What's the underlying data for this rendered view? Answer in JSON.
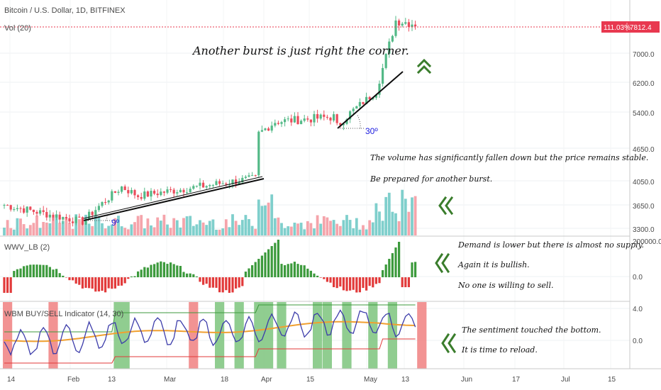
{
  "header": {
    "symbol": "Bitcoin / U.S. Dollar, 1D, BITFINEX",
    "volume_label": "Vol (20)",
    "wwv_label": "WWV_LB (2)",
    "wbm_label": "WBM BUY/SELL Indicator (14, 30)"
  },
  "price_badge": {
    "pct": "111.03%",
    "price": "7812.4",
    "color": "#e8384f"
  },
  "annotations": {
    "headline": "Another burst is just right the corner.",
    "note_volume_1": "The volume has significantly fallen down but the price remains stable.",
    "note_volume_2": "Be prepared for another burst.",
    "note_wwv_1": "Demand is lower but there is almost no supply.",
    "note_wwv_2": "Again it is bullish.",
    "note_wwv_3": "No one is willing to sell.",
    "note_wbm_1": "The sentiment touched the bottom.",
    "note_wbm_2": "It is time to reload.",
    "angle_small": "9º",
    "angle_large": "30º"
  },
  "colors": {
    "up": "#53b987",
    "down": "#eb4d5c",
    "vol_up": "#7fcfcc",
    "vol_down": "#f5a4ab",
    "green_arrow": "#3a7d2c",
    "blue": "#1a1adf",
    "orange": "#f0a030",
    "indigo": "#3c3caa"
  },
  "chart_data": {
    "type": "candlestick",
    "title": "Bitcoin / U.S. Dollar, 1D, BITFINEX",
    "x_ticks": [
      "14",
      "Feb",
      "13",
      "Mar",
      "18",
      "Apr",
      "15",
      "May",
      "13",
      "Jun",
      "17",
      "Jul",
      "15"
    ],
    "price_axis": {
      "ticks": [
        3300,
        3650,
        4050,
        4650,
        5400,
        6200,
        7000,
        7812.4
      ],
      "last": 7812.4
    },
    "wwv_axis": {
      "ticks": [
        200000,
        0
      ]
    },
    "wbm_axis": {
      "ticks": [
        4,
        0
      ]
    },
    "price_keypoints": [
      [
        "2019-01-14",
        3650
      ],
      [
        "2019-02-07",
        3400
      ],
      [
        "2019-02-19",
        3950
      ],
      [
        "2019-02-24",
        3800
      ],
      [
        "2019-03-18",
        3980
      ],
      [
        "2019-04-01",
        4100
      ],
      [
        "2019-04-02",
        4950
      ],
      [
        "2019-04-07",
        5200
      ],
      [
        "2019-04-25",
        5300
      ],
      [
        "2019-04-26",
        5100
      ],
      [
        "2019-05-08",
        5950
      ],
      [
        "2019-05-11",
        6900
      ],
      [
        "2019-05-14",
        7900
      ],
      [
        "2019-05-20",
        7812.4
      ]
    ],
    "trendlines": [
      {
        "from": [
          "2019-02-07",
          3400
        ],
        "to": [
          "2019-04-01",
          4050
        ],
        "angle": "9º"
      },
      {
        "from": [
          "2019-04-25",
          5050
        ],
        "to": [
          "2019-05-11",
          6550
        ],
        "angle": "30º"
      }
    ]
  }
}
